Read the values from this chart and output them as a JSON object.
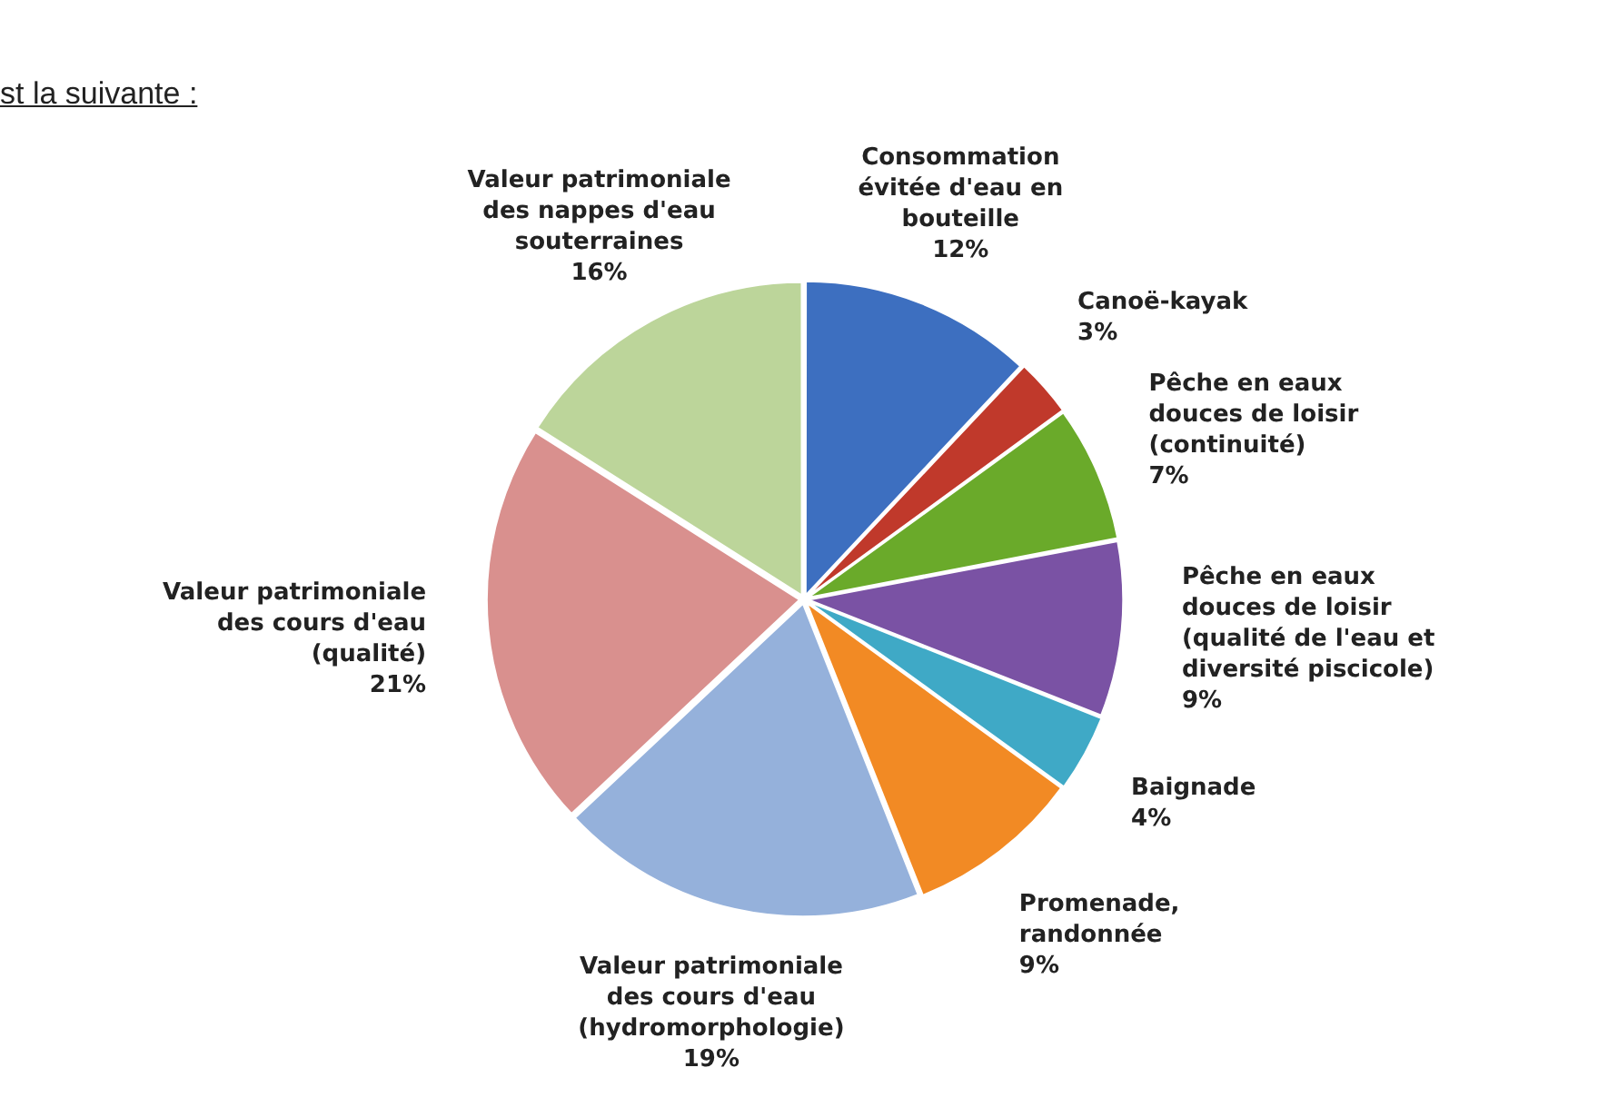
{
  "chart_data": {
    "type": "pie",
    "categories": [
      "Consommation évitée d'eau en bouteille",
      "Canoë-kayak",
      "Pêche en eaux douces de loisir (continuité)",
      "Pêche en eaux douces de loisir (qualité de l'eau et diversité piscicole)",
      "Baignade",
      "Promenade, randonnée",
      "Valeur patrimoniale des cours d'eau (hydromorphologie)",
      "Valeur patrimoniale des cours d'eau (qualité)",
      "Valeur patrimoniale des nappes d'eau souterraines"
    ],
    "values": [
      12,
      3,
      7,
      9,
      4,
      9,
      19,
      21,
      16
    ],
    "value_labels": [
      "12%",
      "3%",
      "7%",
      "9%",
      "4%",
      "9%",
      "19%",
      "21%",
      "16%"
    ],
    "colors": [
      "#3d6fc0",
      "#c0392b",
      "#6aaa2a",
      "#7a52a4",
      "#3fa9c6",
      "#f28a24",
      "#95b1db",
      "#d9908e",
      "#bcd59a"
    ],
    "legend": false,
    "annotations": [
      "st la suivante :"
    ]
  }
}
